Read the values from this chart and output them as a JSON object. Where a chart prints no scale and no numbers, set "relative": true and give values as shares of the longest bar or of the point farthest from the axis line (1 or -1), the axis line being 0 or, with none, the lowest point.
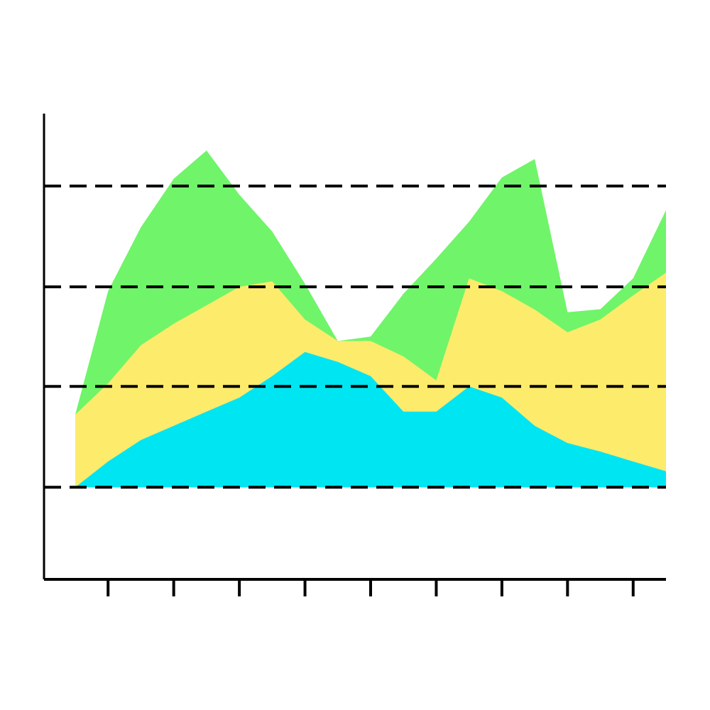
{
  "chart_data": {
    "type": "area",
    "relative": true,
    "categories": [
      null,
      null,
      null,
      null,
      null,
      null,
      null,
      null,
      null,
      null,
      null,
      null,
      null,
      null,
      null,
      null,
      null,
      null,
      null
    ],
    "series": [
      {
        "color": "#70f46a",
        "values": [
          0.384,
          0.672,
          0.821,
          0.934,
          1.0,
          0.897,
          0.811,
          0.689,
          0.556,
          0.566,
          0.666,
          0.748,
          0.834,
          0.937,
          0.98,
          0.623,
          0.63,
          0.702,
          0.861
        ]
      },
      {
        "color": "#fdeb6b",
        "values": [
          0.384,
          0.457,
          0.546,
          0.596,
          0.639,
          0.682,
          0.695,
          0.606,
          0.556,
          0.556,
          0.52,
          0.464,
          0.702,
          0.672,
          0.629,
          0.576,
          0.606,
          0.662,
          0.715
        ]
      },
      {
        "color": "#00e5f2",
        "values": [
          0.215,
          0.275,
          0.325,
          0.358,
          0.391,
          0.424,
          0.474,
          0.53,
          0.507,
          0.474,
          0.391,
          0.391,
          0.45,
          0.424,
          0.358,
          0.318,
          0.298,
          0.275,
          0.252
        ]
      }
    ],
    "ref_lines": [
      {
        "axis": "y",
        "value": 0.917,
        "line_style": "dashed",
        "color": "#000000"
      },
      {
        "axis": "y",
        "value": 0.682,
        "line_style": "dashed",
        "color": "#000000"
      },
      {
        "axis": "y",
        "value": 0.45,
        "line_style": "dashed",
        "color": "#000000"
      },
      {
        "axis": "y",
        "value": 0.215,
        "line_style": "dashed",
        "color": "#000000"
      }
    ],
    "legend": false
  }
}
